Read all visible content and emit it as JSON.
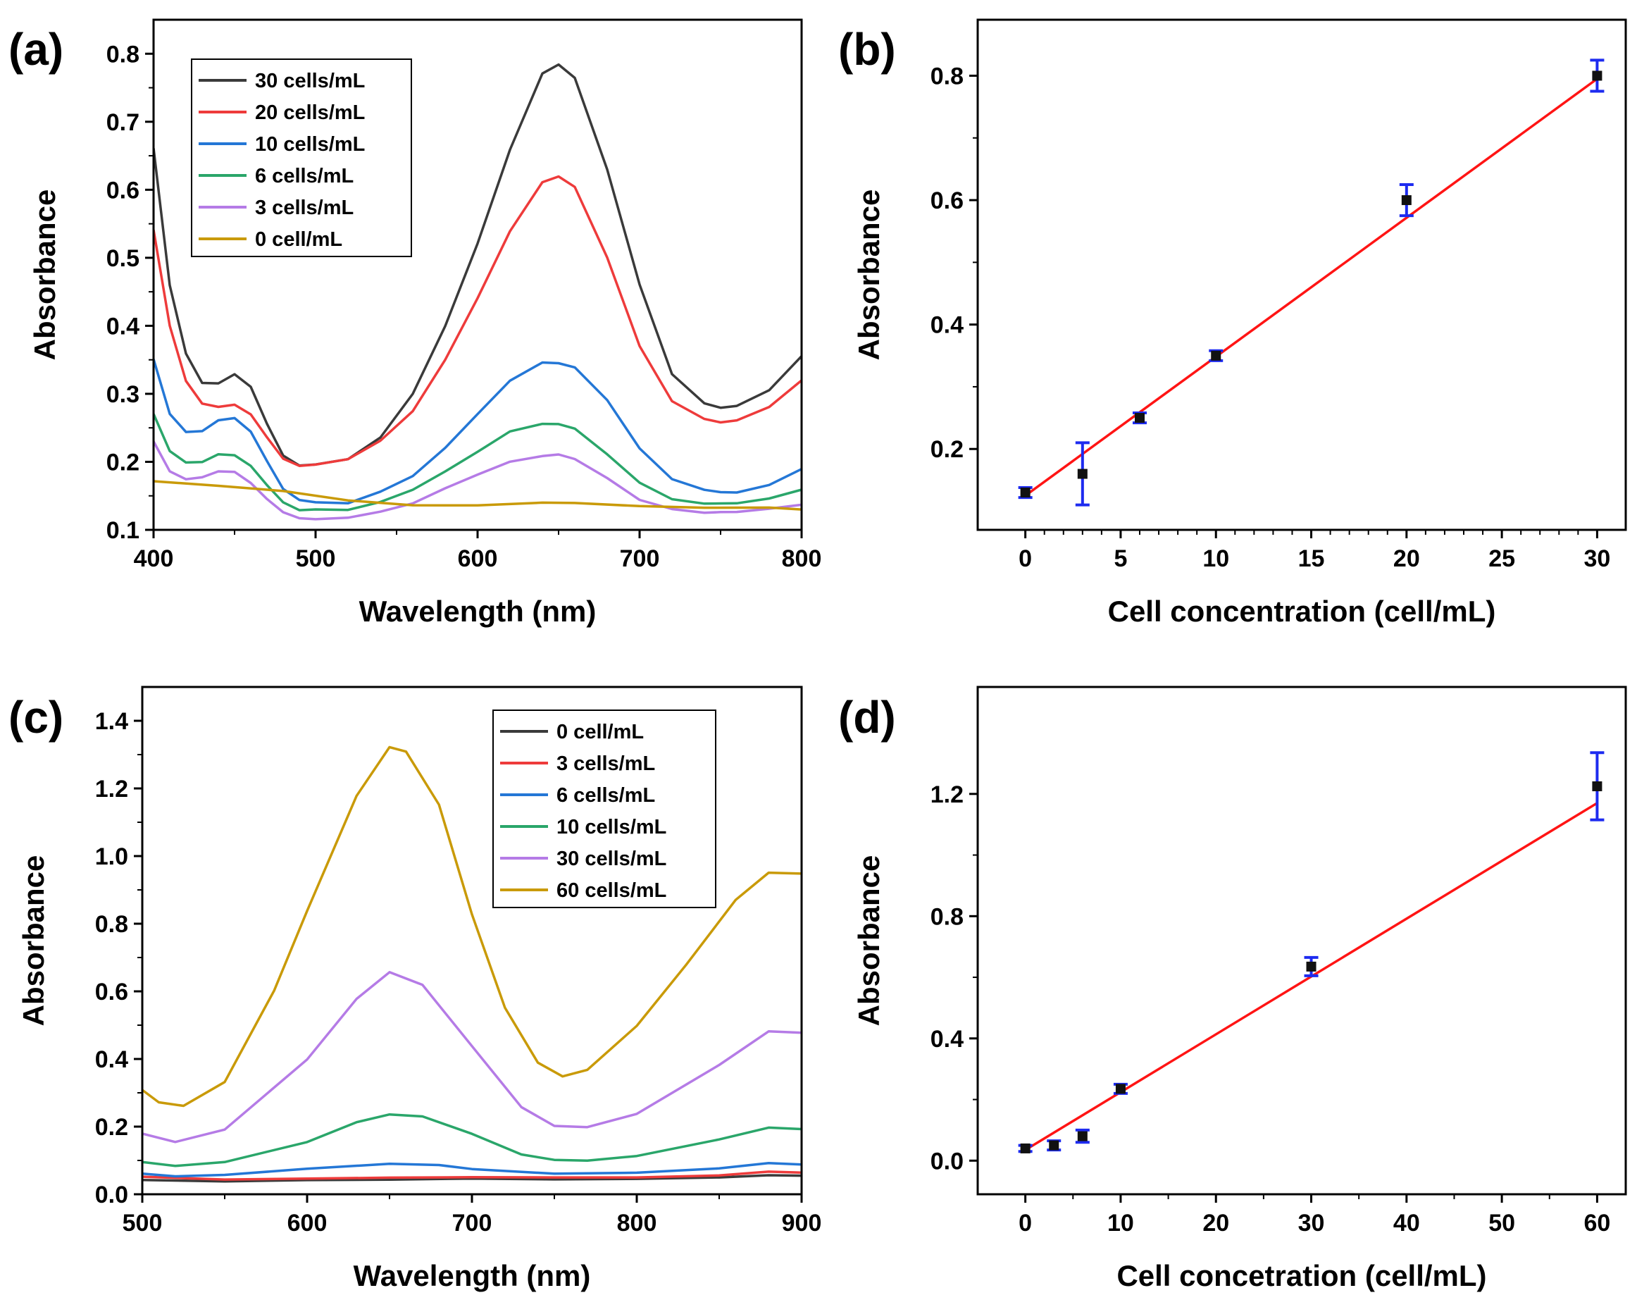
{
  "chart_data": [
    {
      "panel": "(a)",
      "type": "line",
      "xlabel": "Wavelength (nm)",
      "ylabel": "Absorbance",
      "xlim": [
        400,
        800
      ],
      "ylim": [
        0.1,
        0.85
      ],
      "xticks": [
        "400",
        "500",
        "600",
        "700",
        "800"
      ],
      "yticks": [
        "0.1",
        "0.2",
        "0.3",
        "0.4",
        "0.5",
        "0.6",
        "0.7",
        "0.8"
      ],
      "legend_position": "top-left",
      "series": [
        {
          "name": "30 cells/mL",
          "color": "#3a3a3a",
          "x": [
            400,
            410,
            420,
            430,
            440,
            450,
            460,
            470,
            480,
            490,
            500,
            520,
            540,
            560,
            580,
            600,
            620,
            640,
            650,
            660,
            680,
            700,
            720,
            740,
            750,
            760,
            780,
            800
          ],
          "y": [
            0.66,
            0.46,
            0.36,
            0.315,
            0.315,
            0.33,
            0.31,
            0.255,
            0.21,
            0.195,
            0.195,
            0.205,
            0.235,
            0.3,
            0.4,
            0.52,
            0.66,
            0.77,
            0.785,
            0.765,
            0.63,
            0.46,
            0.33,
            0.285,
            0.28,
            0.283,
            0.305,
            0.355
          ]
        },
        {
          "name": "20 cells/mL",
          "color": "#ee3b3b",
          "x": [
            400,
            410,
            420,
            430,
            440,
            450,
            460,
            470,
            480,
            490,
            500,
            520,
            540,
            560,
            580,
            600,
            620,
            640,
            650,
            660,
            680,
            700,
            720,
            740,
            750,
            760,
            780,
            800
          ],
          "y": [
            0.54,
            0.4,
            0.32,
            0.285,
            0.28,
            0.285,
            0.27,
            0.235,
            0.205,
            0.195,
            0.195,
            0.205,
            0.23,
            0.275,
            0.35,
            0.44,
            0.54,
            0.61,
            0.62,
            0.605,
            0.5,
            0.37,
            0.29,
            0.262,
            0.258,
            0.262,
            0.28,
            0.32
          ]
        },
        {
          "name": "10 cells/mL",
          "color": "#2477d6",
          "x": [
            400,
            410,
            420,
            430,
            440,
            450,
            460,
            470,
            480,
            490,
            500,
            520,
            540,
            560,
            580,
            600,
            620,
            640,
            650,
            660,
            680,
            700,
            720,
            740,
            750,
            760,
            780,
            800
          ],
          "y": [
            0.35,
            0.27,
            0.245,
            0.245,
            0.26,
            0.265,
            0.245,
            0.2,
            0.16,
            0.145,
            0.14,
            0.14,
            0.155,
            0.18,
            0.22,
            0.27,
            0.32,
            0.345,
            0.345,
            0.34,
            0.29,
            0.22,
            0.175,
            0.158,
            0.155,
            0.156,
            0.165,
            0.19
          ]
        },
        {
          "name": "6 cells/mL",
          "color": "#2aa66a",
          "x": [
            400,
            410,
            420,
            430,
            440,
            450,
            460,
            470,
            480,
            490,
            500,
            520,
            540,
            560,
            580,
            600,
            620,
            640,
            650,
            660,
            680,
            700,
            720,
            740,
            750,
            760,
            780,
            800
          ],
          "y": [
            0.27,
            0.215,
            0.2,
            0.2,
            0.21,
            0.21,
            0.195,
            0.165,
            0.14,
            0.13,
            0.13,
            0.13,
            0.14,
            0.16,
            0.185,
            0.215,
            0.245,
            0.255,
            0.255,
            0.25,
            0.21,
            0.17,
            0.145,
            0.138,
            0.138,
            0.14,
            0.145,
            0.16
          ]
        },
        {
          "name": "3 cells/mL",
          "color": "#b57be6",
          "x": [
            400,
            410,
            420,
            430,
            440,
            450,
            460,
            470,
            480,
            490,
            500,
            520,
            540,
            560,
            580,
            600,
            620,
            640,
            650,
            660,
            680,
            700,
            720,
            740,
            750,
            760,
            780,
            800
          ],
          "y": [
            0.23,
            0.185,
            0.175,
            0.178,
            0.185,
            0.185,
            0.17,
            0.145,
            0.125,
            0.118,
            0.116,
            0.118,
            0.126,
            0.14,
            0.16,
            0.182,
            0.2,
            0.208,
            0.21,
            0.205,
            0.175,
            0.145,
            0.13,
            0.125,
            0.125,
            0.127,
            0.13,
            0.138
          ]
        },
        {
          "name": "0 cell/mL",
          "color": "#c99a08",
          "x": [
            400,
            440,
            480,
            520,
            560,
            600,
            640,
            660,
            700,
            740,
            780,
            800
          ],
          "y": [
            0.172,
            0.164,
            0.156,
            0.143,
            0.137,
            0.137,
            0.14,
            0.14,
            0.136,
            0.133,
            0.132,
            0.131
          ]
        }
      ]
    },
    {
      "panel": "(b)",
      "type": "scatter",
      "xlabel": "Cell concentration (cell/mL)",
      "ylabel": "Absorbance",
      "xlim": [
        -2.5,
        31.5
      ],
      "ylim": [
        0.07,
        0.89
      ],
      "xticks": [
        "0",
        "5",
        "10",
        "15",
        "20",
        "25",
        "30"
      ],
      "yticks": [
        "0.2",
        "0.4",
        "0.6",
        "0.8"
      ],
      "points": {
        "x": [
          0,
          3,
          6,
          10,
          20,
          30
        ],
        "y": [
          0.13,
          0.16,
          0.25,
          0.35,
          0.6,
          0.8
        ],
        "err": [
          0.008,
          0.05,
          0.008,
          0.008,
          0.025,
          0.025
        ]
      },
      "fit": {
        "x": [
          0,
          30
        ],
        "y": [
          0.125,
          0.795
        ]
      }
    },
    {
      "panel": "(c)",
      "type": "line",
      "xlabel": "Wavelength (nm)",
      "ylabel": "Absorbance",
      "xlim": [
        500,
        900
      ],
      "ylim": [
        0.0,
        1.5
      ],
      "xticks": [
        "500",
        "600",
        "700",
        "800",
        "900"
      ],
      "yticks": [
        "0.0",
        "0.2",
        "0.4",
        "0.6",
        "0.8",
        "1.0",
        "1.2",
        "1.4"
      ],
      "legend_position": "top-right",
      "series": [
        {
          "name": "0 cell/mL",
          "color": "#3a3a3a",
          "x": [
            500,
            550,
            600,
            650,
            700,
            750,
            800,
            850,
            880,
            900
          ],
          "y": [
            0.04,
            0.04,
            0.04,
            0.045,
            0.045,
            0.045,
            0.045,
            0.05,
            0.055,
            0.055
          ]
        },
        {
          "name": "3 cells/mL",
          "color": "#ee3b3b",
          "x": [
            500,
            550,
            600,
            650,
            700,
            750,
            800,
            850,
            880,
            900
          ],
          "y": [
            0.05,
            0.045,
            0.045,
            0.05,
            0.05,
            0.05,
            0.05,
            0.055,
            0.065,
            0.065
          ]
        },
        {
          "name": "6 cells/mL",
          "color": "#2477d6",
          "x": [
            500,
            520,
            550,
            600,
            650,
            680,
            700,
            750,
            800,
            850,
            880,
            900
          ],
          "y": [
            0.06,
            0.055,
            0.058,
            0.075,
            0.09,
            0.085,
            0.075,
            0.06,
            0.065,
            0.075,
            0.09,
            0.09
          ]
        },
        {
          "name": "10 cells/mL",
          "color": "#2aa66a",
          "x": [
            500,
            520,
            550,
            600,
            630,
            650,
            670,
            700,
            730,
            750,
            770,
            800,
            850,
            880,
            900
          ],
          "y": [
            0.095,
            0.085,
            0.095,
            0.155,
            0.215,
            0.235,
            0.23,
            0.18,
            0.12,
            0.1,
            0.1,
            0.115,
            0.16,
            0.195,
            0.195
          ]
        },
        {
          "name": "30 cells/mL",
          "color": "#b57be6",
          "x": [
            500,
            520,
            550,
            600,
            630,
            650,
            670,
            700,
            730,
            750,
            770,
            800,
            850,
            880,
            900
          ],
          "y": [
            0.18,
            0.155,
            0.19,
            0.4,
            0.58,
            0.655,
            0.62,
            0.44,
            0.26,
            0.2,
            0.2,
            0.24,
            0.38,
            0.48,
            0.48
          ]
        },
        {
          "name": "60 cells/mL",
          "color": "#c99a08",
          "x": [
            500,
            510,
            525,
            550,
            580,
            600,
            630,
            650,
            660,
            680,
            700,
            720,
            740,
            755,
            770,
            800,
            830,
            860,
            880,
            900
          ],
          "y": [
            0.31,
            0.27,
            0.26,
            0.33,
            0.6,
            0.84,
            1.18,
            1.32,
            1.31,
            1.15,
            0.83,
            0.55,
            0.39,
            0.35,
            0.37,
            0.5,
            0.68,
            0.87,
            0.95,
            0.95
          ]
        }
      ]
    },
    {
      "panel": "(d)",
      "type": "scatter",
      "xlabel": "Cell concetration (cell/mL)",
      "ylabel": "Absorbance",
      "xlim": [
        -5,
        63
      ],
      "ylim": [
        -0.11,
        1.55
      ],
      "xticks": [
        "0",
        "10",
        "20",
        "30",
        "40",
        "50",
        "60"
      ],
      "yticks": [
        "0.0",
        "0.4",
        "0.8",
        "1.2"
      ],
      "points": {
        "x": [
          0,
          3,
          6,
          10,
          30,
          60
        ],
        "y": [
          0.04,
          0.05,
          0.08,
          0.235,
          0.635,
          1.225
        ],
        "err": [
          0.01,
          0.015,
          0.02,
          0.015,
          0.03,
          0.11
        ]
      },
      "fit": {
        "x": [
          0,
          60
        ],
        "y": [
          0.035,
          1.17
        ]
      }
    }
  ]
}
